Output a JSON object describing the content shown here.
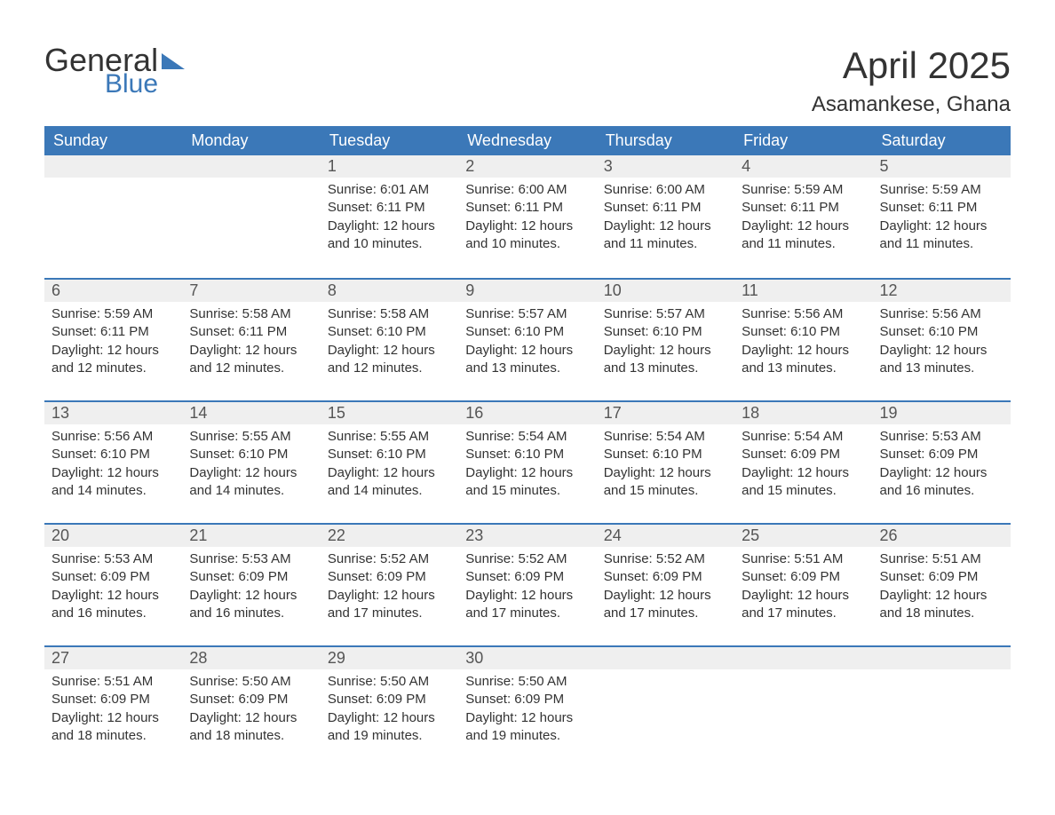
{
  "logo": {
    "word1": "General",
    "word2": "Blue"
  },
  "title": "April 2025",
  "location": "Asamankese, Ghana",
  "colors": {
    "header_bg": "#3b78b8",
    "header_text": "#ffffff",
    "daynum_bg": "#efefef",
    "rule": "#3b78b8",
    "text": "#333333"
  },
  "day_names": [
    "Sunday",
    "Monday",
    "Tuesday",
    "Wednesday",
    "Thursday",
    "Friday",
    "Saturday"
  ],
  "weeks": [
    [
      {
        "n": "",
        "sr": "",
        "ss": "",
        "dl": ""
      },
      {
        "n": "",
        "sr": "",
        "ss": "",
        "dl": ""
      },
      {
        "n": "1",
        "sr": "6:01 AM",
        "ss": "6:11 PM",
        "dl": "12 hours and 10 minutes."
      },
      {
        "n": "2",
        "sr": "6:00 AM",
        "ss": "6:11 PM",
        "dl": "12 hours and 10 minutes."
      },
      {
        "n": "3",
        "sr": "6:00 AM",
        "ss": "6:11 PM",
        "dl": "12 hours and 11 minutes."
      },
      {
        "n": "4",
        "sr": "5:59 AM",
        "ss": "6:11 PM",
        "dl": "12 hours and 11 minutes."
      },
      {
        "n": "5",
        "sr": "5:59 AM",
        "ss": "6:11 PM",
        "dl": "12 hours and 11 minutes."
      }
    ],
    [
      {
        "n": "6",
        "sr": "5:59 AM",
        "ss": "6:11 PM",
        "dl": "12 hours and 12 minutes."
      },
      {
        "n": "7",
        "sr": "5:58 AM",
        "ss": "6:11 PM",
        "dl": "12 hours and 12 minutes."
      },
      {
        "n": "8",
        "sr": "5:58 AM",
        "ss": "6:10 PM",
        "dl": "12 hours and 12 minutes."
      },
      {
        "n": "9",
        "sr": "5:57 AM",
        "ss": "6:10 PM",
        "dl": "12 hours and 13 minutes."
      },
      {
        "n": "10",
        "sr": "5:57 AM",
        "ss": "6:10 PM",
        "dl": "12 hours and 13 minutes."
      },
      {
        "n": "11",
        "sr": "5:56 AM",
        "ss": "6:10 PM",
        "dl": "12 hours and 13 minutes."
      },
      {
        "n": "12",
        "sr": "5:56 AM",
        "ss": "6:10 PM",
        "dl": "12 hours and 13 minutes."
      }
    ],
    [
      {
        "n": "13",
        "sr": "5:56 AM",
        "ss": "6:10 PM",
        "dl": "12 hours and 14 minutes."
      },
      {
        "n": "14",
        "sr": "5:55 AM",
        "ss": "6:10 PM",
        "dl": "12 hours and 14 minutes."
      },
      {
        "n": "15",
        "sr": "5:55 AM",
        "ss": "6:10 PM",
        "dl": "12 hours and 14 minutes."
      },
      {
        "n": "16",
        "sr": "5:54 AM",
        "ss": "6:10 PM",
        "dl": "12 hours and 15 minutes."
      },
      {
        "n": "17",
        "sr": "5:54 AM",
        "ss": "6:10 PM",
        "dl": "12 hours and 15 minutes."
      },
      {
        "n": "18",
        "sr": "5:54 AM",
        "ss": "6:09 PM",
        "dl": "12 hours and 15 minutes."
      },
      {
        "n": "19",
        "sr": "5:53 AM",
        "ss": "6:09 PM",
        "dl": "12 hours and 16 minutes."
      }
    ],
    [
      {
        "n": "20",
        "sr": "5:53 AM",
        "ss": "6:09 PM",
        "dl": "12 hours and 16 minutes."
      },
      {
        "n": "21",
        "sr": "5:53 AM",
        "ss": "6:09 PM",
        "dl": "12 hours and 16 minutes."
      },
      {
        "n": "22",
        "sr": "5:52 AM",
        "ss": "6:09 PM",
        "dl": "12 hours and 17 minutes."
      },
      {
        "n": "23",
        "sr": "5:52 AM",
        "ss": "6:09 PM",
        "dl": "12 hours and 17 minutes."
      },
      {
        "n": "24",
        "sr": "5:52 AM",
        "ss": "6:09 PM",
        "dl": "12 hours and 17 minutes."
      },
      {
        "n": "25",
        "sr": "5:51 AM",
        "ss": "6:09 PM",
        "dl": "12 hours and 17 minutes."
      },
      {
        "n": "26",
        "sr": "5:51 AM",
        "ss": "6:09 PM",
        "dl": "12 hours and 18 minutes."
      }
    ],
    [
      {
        "n": "27",
        "sr": "5:51 AM",
        "ss": "6:09 PM",
        "dl": "12 hours and 18 minutes."
      },
      {
        "n": "28",
        "sr": "5:50 AM",
        "ss": "6:09 PM",
        "dl": "12 hours and 18 minutes."
      },
      {
        "n": "29",
        "sr": "5:50 AM",
        "ss": "6:09 PM",
        "dl": "12 hours and 19 minutes."
      },
      {
        "n": "30",
        "sr": "5:50 AM",
        "ss": "6:09 PM",
        "dl": "12 hours and 19 minutes."
      },
      {
        "n": "",
        "sr": "",
        "ss": "",
        "dl": ""
      },
      {
        "n": "",
        "sr": "",
        "ss": "",
        "dl": ""
      },
      {
        "n": "",
        "sr": "",
        "ss": "",
        "dl": ""
      }
    ]
  ],
  "labels": {
    "sunrise": "Sunrise: ",
    "sunset": "Sunset: ",
    "daylight": "Daylight: "
  }
}
